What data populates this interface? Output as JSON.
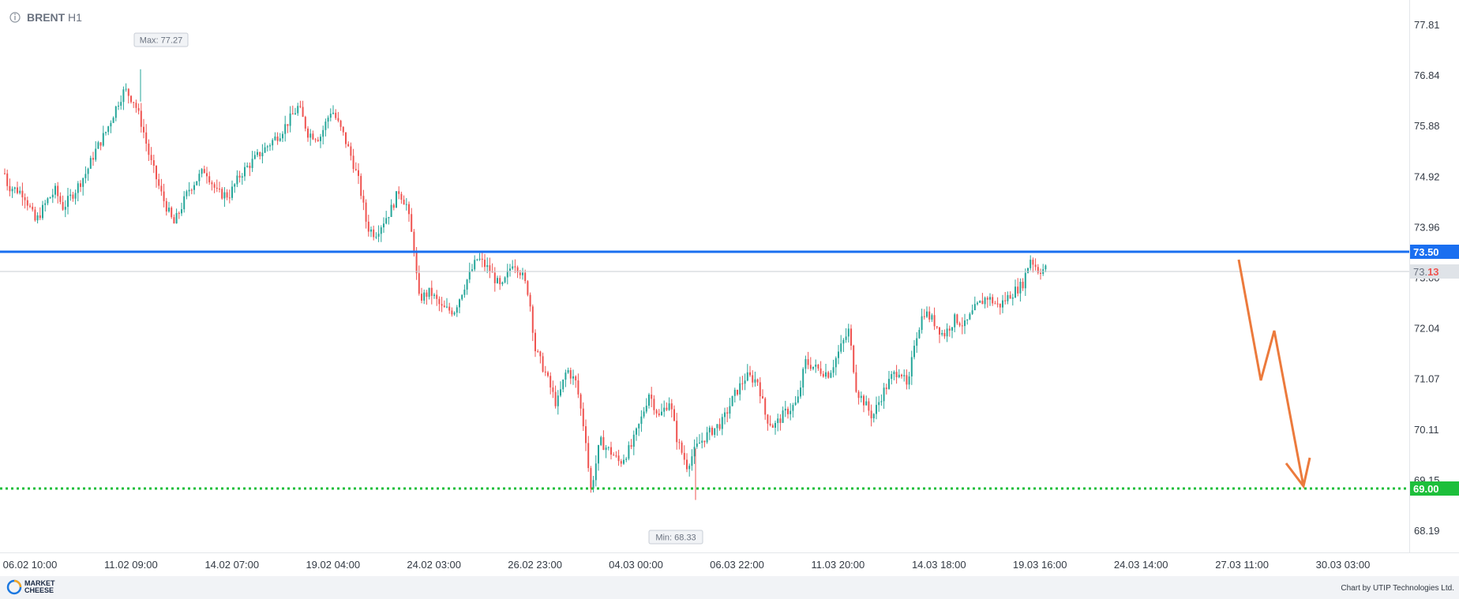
{
  "header": {
    "symbol": "BRENT",
    "timeframe": "H1",
    "info_icon": "info-circle-icon"
  },
  "footer": {
    "logo_line1": "MARKET",
    "logo_line2": "CHEESE",
    "credit": "Chart by UTIP Technologies Ltd."
  },
  "colors": {
    "up": "#26a69a",
    "down": "#ef5350",
    "resistance": "#1a6ff0",
    "support": "#1dbf3b",
    "current_price_tag": "#dfe3e8",
    "arrow": "#ec7a3c",
    "axis_bg": "#ffffff",
    "footer_bg": "#f1f3f6"
  },
  "chart_data": {
    "type": "candlestick",
    "y_ticks": [
      "77.81",
      "76.84",
      "75.88",
      "74.92",
      "73.96",
      "73.00",
      "72.04",
      "71.07",
      "70.11",
      "69.15",
      "68.19"
    ],
    "ylim": [
      67.7,
      78.25
    ],
    "x_ticks": [
      "06.02 10:00",
      "11.02 09:00",
      "14.02 07:00",
      "19.02 04:00",
      "24.02 03:00",
      "26.02 23:00",
      "04.03 00:00",
      "06.03 22:00",
      "11.03 20:00",
      "14.03 18:00",
      "19.03 16:00",
      "24.03 14:00",
      "27.03 11:00",
      "30.03 03:00"
    ],
    "price_path": [
      [
        0,
        75.5
      ],
      [
        10,
        74.85
      ],
      [
        30,
        74.7
      ],
      [
        45,
        74.1
      ],
      [
        60,
        74.55
      ],
      [
        70,
        74.75
      ],
      [
        80,
        74.4
      ],
      [
        95,
        74.75
      ],
      [
        110,
        75.15
      ],
      [
        120,
        75.55
      ],
      [
        135,
        76.0
      ],
      [
        150,
        76.6
      ],
      [
        158,
        76.85
      ],
      [
        170,
        76.6
      ],
      [
        180,
        76.1
      ],
      [
        190,
        75.4
      ],
      [
        205,
        74.65
      ],
      [
        220,
        74.05
      ],
      [
        240,
        74.8
      ],
      [
        260,
        75.2
      ],
      [
        275,
        74.7
      ],
      [
        290,
        74.65
      ],
      [
        305,
        75.1
      ],
      [
        325,
        75.45
      ],
      [
        340,
        75.7
      ],
      [
        355,
        75.95
      ],
      [
        370,
        76.3
      ],
      [
        378,
        76.5
      ],
      [
        390,
        75.95
      ],
      [
        405,
        75.85
      ],
      [
        420,
        76.45
      ],
      [
        435,
        75.9
      ],
      [
        445,
        75.45
      ],
      [
        455,
        74.9
      ],
      [
        465,
        74.0
      ],
      [
        475,
        73.85
      ],
      [
        485,
        74.1
      ],
      [
        495,
        74.35
      ],
      [
        505,
        74.75
      ],
      [
        515,
        74.45
      ],
      [
        525,
        73.5
      ],
      [
        530,
        72.5
      ],
      [
        545,
        72.65
      ],
      [
        560,
        72.3
      ],
      [
        575,
        72.25
      ],
      [
        590,
        72.85
      ],
      [
        605,
        73.35
      ],
      [
        620,
        73.1
      ],
      [
        635,
        72.7
      ],
      [
        650,
        73.3
      ],
      [
        660,
        73.05
      ],
      [
        670,
        72.6
      ],
      [
        678,
        71.45
      ],
      [
        690,
        71.0
      ],
      [
        705,
        70.3
      ],
      [
        718,
        71.05
      ],
      [
        730,
        70.75
      ],
      [
        742,
        69.6
      ],
      [
        748,
        68.5
      ],
      [
        760,
        69.55
      ],
      [
        775,
        69.3
      ],
      [
        785,
        69.1
      ],
      [
        800,
        69.45
      ],
      [
        812,
        70.0
      ],
      [
        822,
        70.55
      ],
      [
        835,
        70.05
      ],
      [
        848,
        70.4
      ],
      [
        858,
        69.55
      ],
      [
        870,
        69.05
      ],
      [
        885,
        69.5
      ],
      [
        900,
        69.75
      ],
      [
        915,
        69.95
      ],
      [
        930,
        70.5
      ],
      [
        945,
        70.9
      ],
      [
        960,
        70.8
      ],
      [
        970,
        70.05
      ],
      [
        980,
        69.85
      ],
      [
        995,
        70.15
      ],
      [
        1010,
        70.35
      ],
      [
        1020,
        71.2
      ],
      [
        1035,
        71.05
      ],
      [
        1050,
        70.95
      ],
      [
        1065,
        71.5
      ],
      [
        1075,
        71.85
      ],
      [
        1085,
        70.6
      ],
      [
        1095,
        70.35
      ],
      [
        1105,
        70.05
      ],
      [
        1118,
        70.55
      ],
      [
        1130,
        70.9
      ],
      [
        1140,
        71.05
      ],
      [
        1150,
        70.6
      ],
      [
        1158,
        71.6
      ],
      [
        1170,
        72.25
      ],
      [
        1182,
        72.05
      ],
      [
        1195,
        71.75
      ],
      [
        1210,
        72.1
      ],
      [
        1222,
        71.95
      ],
      [
        1235,
        72.3
      ],
      [
        1250,
        72.55
      ],
      [
        1265,
        72.35
      ],
      [
        1280,
        72.6
      ],
      [
        1295,
        72.8
      ],
      [
        1305,
        73.35
      ],
      [
        1315,
        73.1
      ],
      [
        1325,
        73.13
      ]
    ],
    "extremes": {
      "max_label": "Max: 77.27",
      "max_value": 77.27,
      "min_label": "Min: 68.33",
      "min_value": 68.33
    },
    "levels": [
      {
        "name": "resistance",
        "value": 73.5,
        "label": "73.50",
        "style": "solid"
      },
      {
        "name": "support",
        "value": 69.0,
        "label": "69.00",
        "style": "dotted"
      }
    ],
    "current_price": {
      "value": 73.13,
      "label_prefix": "73.",
      "label_suffix": "13"
    },
    "forecast_path": [
      [
        1332,
        73.38
      ],
      [
        1355,
        71.05
      ],
      [
        1370,
        72.15
      ],
      [
        1400,
        69.05
      ]
    ],
    "grid": false
  }
}
